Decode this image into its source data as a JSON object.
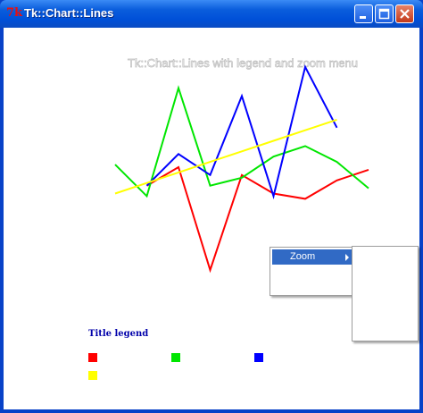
{
  "window": {
    "title": "Tk::Chart::Lines",
    "icon": "tk-feather-icon",
    "buttons": [
      "minimize",
      "maximize",
      "close"
    ]
  },
  "chart_data": {
    "type": "line",
    "title": "Tk::Chart::Lines with legend and zoom menu",
    "xlabel": "",
    "ylabel": "",
    "x": [
      1,
      2,
      3,
      4,
      5,
      6,
      7,
      8,
      9,
      10
    ],
    "ylim": [
      0,
      10
    ],
    "grid": false,
    "axes_visible": false,
    "legend_position": "bottom-left",
    "legend_title": "Title legend",
    "series": [
      {
        "color": "#ff0000",
        "values": [
          null,
          5.3,
          6.0,
          2.1,
          5.7,
          5.0,
          4.8,
          5.5,
          5.9,
          null
        ]
      },
      {
        "color": "#00e600",
        "values": [
          6.1,
          4.9,
          9.0,
          5.3,
          5.6,
          6.4,
          6.8,
          6.2,
          5.2,
          null
        ]
      },
      {
        "color": "#0000ff",
        "values": [
          null,
          5.3,
          6.5,
          5.7,
          8.7,
          4.9,
          9.8,
          7.5,
          null,
          null
        ]
      },
      {
        "color": "#ffff00",
        "values": [
          5.0,
          5.4,
          5.8,
          6.2,
          6.6,
          7.0,
          7.4,
          7.8,
          null,
          null
        ]
      }
    ]
  },
  "context_menu": {
    "items": [
      {
        "label": "Zoom",
        "has_submenu": true
      }
    ]
  }
}
